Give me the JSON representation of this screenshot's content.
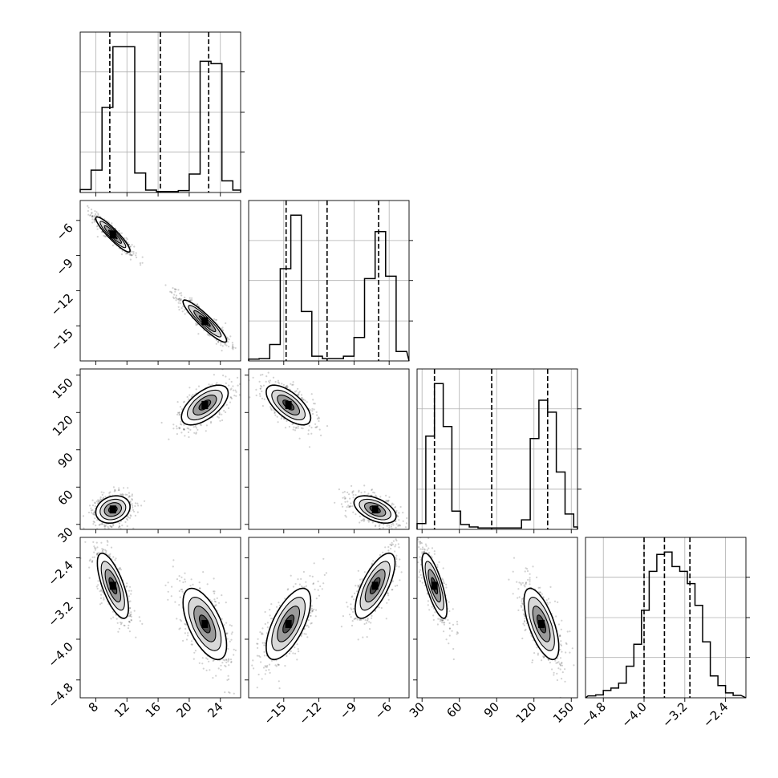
{
  "chart_data": {
    "type": "corner",
    "title": "",
    "grid": true,
    "colors": {
      "ink": "#000000",
      "grid": "#b0b0b0",
      "frame": "#000000",
      "background": "#ffffff"
    },
    "parameters": [
      {
        "index": 0,
        "label": "",
        "range": [
          6.0,
          26.6
        ],
        "ticks": [
          8,
          12,
          16,
          20,
          24
        ],
        "tick_labels": [
          "8",
          "12",
          "16",
          "20",
          "24"
        ],
        "quantiles": [
          9.8,
          16.3,
          22.5
        ]
      },
      {
        "index": 1,
        "label": "",
        "range": [
          -18.0,
          -4.3
        ],
        "ticks": [
          -15,
          -12,
          -9,
          -6
        ],
        "tick_labels": [
          "−15",
          "−12",
          "−9",
          "−6"
        ],
        "quantiles": [
          -14.8,
          -11.3,
          -6.9
        ]
      },
      {
        "index": 2,
        "label": "",
        "range": [
          26.0,
          155.0
        ],
        "ticks": [
          30,
          60,
          90,
          120,
          150
        ],
        "tick_labels": [
          "30",
          "60",
          "90",
          "120",
          "150"
        ],
        "quantiles": [
          40,
          86,
          131
        ]
      },
      {
        "index": 3,
        "label": "",
        "range": [
          -5.15,
          -2.0
        ],
        "ticks": [
          -4.8,
          -4.0,
          -3.2,
          -2.4
        ],
        "tick_labels": [
          "−4.8",
          "−4.0",
          "−3.2",
          "−2.4"
        ],
        "quantiles": [
          -4.0,
          -3.6,
          -3.1
        ]
      }
    ],
    "histograms": [
      {
        "param": 0,
        "bin_edges": [
          6,
          7.4,
          8.8,
          10.2,
          11.6,
          13,
          14.4,
          15.8,
          17.2,
          18.6,
          20,
          21.4,
          22.8,
          24.2,
          25.6,
          27
        ],
        "counts": [
          6,
          46,
          175,
          300,
          300,
          40,
          5,
          2,
          2,
          4,
          38,
          270,
          265,
          24,
          5
        ]
      },
      {
        "param": 1,
        "bin_edges": [
          -18,
          -17.1,
          -16.2,
          -15.3,
          -14.4,
          -13.5,
          -12.6,
          -11.7,
          -10.8,
          -9.9,
          -9,
          -8.1,
          -7.2,
          -6.3,
          -5.4,
          -4.5
        ],
        "counts": [
          4,
          5,
          35,
          196,
          310,
          105,
          10,
          5,
          5,
          10,
          50,
          175,
          275,
          180,
          20
        ]
      },
      {
        "param": 2,
        "bin_edges": [
          26,
          33,
          40,
          47,
          54,
          61,
          68,
          75,
          82,
          89,
          96,
          103,
          110,
          117,
          124,
          131,
          138,
          145,
          152,
          155
        ],
        "counts": [
          12,
          195,
          305,
          215,
          38,
          10,
          5,
          3,
          3,
          3,
          3,
          3,
          20,
          190,
          270,
          245,
          120,
          32,
          5
        ]
      },
      {
        "param": 3,
        "bin_edges": [
          -5.1,
          -4.95,
          -4.8,
          -4.65,
          -4.5,
          -4.35,
          -4.2,
          -4.05,
          -3.9,
          -3.75,
          -3.6,
          -3.45,
          -3.3,
          -3.15,
          -3.0,
          -2.85,
          -2.7,
          -2.55,
          -2.4,
          -2.25,
          -2.1
        ],
        "counts": [
          4,
          6,
          15,
          20,
          30,
          65,
          110,
          180,
          260,
          295,
          300,
          270,
          260,
          235,
          190,
          115,
          45,
          25,
          10,
          5
        ]
      }
    ],
    "pairs": [
      {
        "x_param": 0,
        "y_param": 1,
        "modes": [
          {
            "center": [
              10.2,
              -7.2
            ],
            "sx": 1.1,
            "sy": 0.75,
            "corr": -0.92,
            "n": 600
          },
          {
            "center": [
              22.0,
              -14.6
            ],
            "sx": 1.4,
            "sy": 0.9,
            "corr": -0.92,
            "n": 600
          }
        ]
      },
      {
        "x_param": 0,
        "y_param": 2,
        "modes": [
          {
            "center": [
              10.2,
              42
            ],
            "sx": 1.1,
            "sy": 5.5,
            "corr": 0.2,
            "n": 600
          },
          {
            "center": [
              22.0,
              126
            ],
            "sx": 1.5,
            "sy": 8.0,
            "corr": 0.6,
            "n": 600
          }
        ]
      },
      {
        "x_param": 1,
        "y_param": 2,
        "modes": [
          {
            "center": [
              -14.6,
              126
            ],
            "sx": 0.95,
            "sy": 8.0,
            "corr": -0.65,
            "n": 600
          },
          {
            "center": [
              -7.2,
              42
            ],
            "sx": 0.9,
            "sy": 5.5,
            "corr": -0.5,
            "n": 600
          }
        ]
      },
      {
        "x_param": 0,
        "y_param": 3,
        "modes": [
          {
            "center": [
              10.2,
              -2.95
            ],
            "sx": 1.0,
            "sy": 0.32,
            "corr": -0.7,
            "n": 600
          },
          {
            "center": [
              22.0,
              -3.7
            ],
            "sx": 1.4,
            "sy": 0.35,
            "corr": -0.6,
            "n": 600
          }
        ]
      },
      {
        "x_param": 1,
        "y_param": 3,
        "modes": [
          {
            "center": [
              -14.6,
              -3.7
            ],
            "sx": 0.95,
            "sy": 0.35,
            "corr": 0.65,
            "n": 600
          },
          {
            "center": [
              -7.2,
              -2.95
            ],
            "sx": 0.85,
            "sy": 0.32,
            "corr": 0.7,
            "n": 600
          }
        ]
      },
      {
        "x_param": 2,
        "y_param": 3,
        "modes": [
          {
            "center": [
              40,
              -2.95
            ],
            "sx": 5.0,
            "sy": 0.32,
            "corr": -0.75,
            "n": 600
          },
          {
            "center": [
              126,
              -3.7
            ],
            "sx": 7.0,
            "sy": 0.35,
            "corr": -0.65,
            "n": 600
          }
        ]
      }
    ],
    "contour_levels": [
      0.5,
      1.0,
      1.5,
      2.0
    ]
  }
}
